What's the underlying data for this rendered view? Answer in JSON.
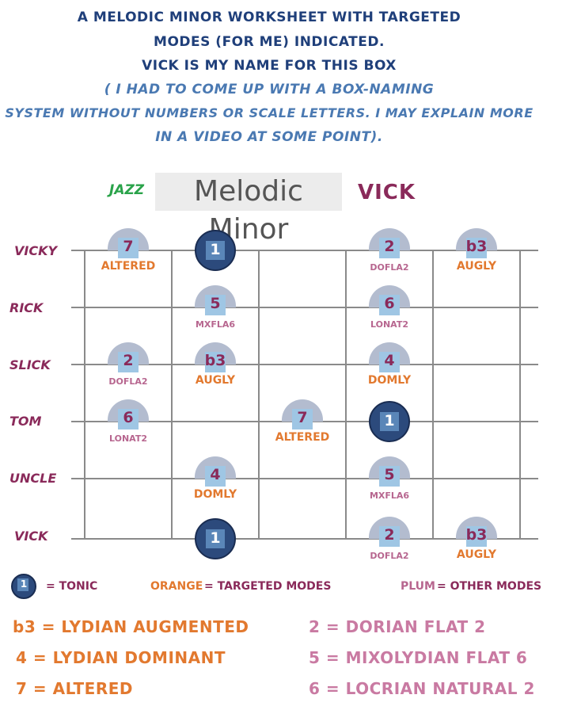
{
  "header": {
    "line1": "A MELODIC MINOR WORKSHEET WITH TARGETED",
    "line2": "MODES (FOR ME) INDICATED.",
    "line3": "VICK IS MY NAME FOR THIS BOX",
    "line4": "( I HAD TO COME UP WITH A BOX-NAMING",
    "line5": "SYSTEM WITHOUT NUMBERS OR SCALE LETTERS. I MAY EXPLAIN MORE",
    "line6": "IN A VIDEO AT SOME POINT)."
  },
  "title": {
    "jazz": "JAZZ",
    "main": "Melodic Minor",
    "box": "VICK"
  },
  "strings": [
    "VICKY",
    "RICK",
    "SLICK",
    "TOM",
    "UNCLE",
    "VICK"
  ],
  "markers": [
    {
      "string": 0,
      "fret": 0,
      "degree": "7",
      "mode": "ALTERED",
      "role": "targeted"
    },
    {
      "string": 0,
      "fret": 1,
      "degree": "1",
      "mode": "",
      "role": "tonic"
    },
    {
      "string": 0,
      "fret": 3,
      "degree": "2",
      "mode": "DOFLA2",
      "role": "other"
    },
    {
      "string": 0,
      "fret": 4,
      "degree": "b3",
      "mode": "AUGLY",
      "role": "targeted"
    },
    {
      "string": 1,
      "fret": 1,
      "degree": "5",
      "mode": "MXFLA6",
      "role": "other"
    },
    {
      "string": 1,
      "fret": 3,
      "degree": "6",
      "mode": "LONAT2",
      "role": "other"
    },
    {
      "string": 2,
      "fret": 0,
      "degree": "2",
      "mode": "DOFLA2",
      "role": "other"
    },
    {
      "string": 2,
      "fret": 1,
      "degree": "b3",
      "mode": "AUGLY",
      "role": "targeted"
    },
    {
      "string": 2,
      "fret": 3,
      "degree": "4",
      "mode": "DOMLY",
      "role": "targeted"
    },
    {
      "string": 3,
      "fret": 0,
      "degree": "6",
      "mode": "LONAT2",
      "role": "other"
    },
    {
      "string": 3,
      "fret": 2,
      "degree": "7",
      "mode": "ALTERED",
      "role": "targeted"
    },
    {
      "string": 3,
      "fret": 3,
      "degree": "1",
      "mode": "",
      "role": "tonic"
    },
    {
      "string": 4,
      "fret": 1,
      "degree": "4",
      "mode": "DOMLY",
      "role": "targeted"
    },
    {
      "string": 4,
      "fret": 3,
      "degree": "5",
      "mode": "MXFLA6",
      "role": "other"
    },
    {
      "string": 5,
      "fret": 1,
      "degree": "1",
      "mode": "",
      "role": "tonic"
    },
    {
      "string": 5,
      "fret": 3,
      "degree": "2",
      "mode": "DOFLA2",
      "role": "other"
    },
    {
      "string": 5,
      "fret": 4,
      "degree": "b3",
      "mode": "AUGLY",
      "role": "targeted"
    }
  ],
  "legend": {
    "tonic_symbol": "1",
    "tonic_text": "= TONIC",
    "orange_word": "ORANGE",
    "orange_rest": "= TARGETED MODES",
    "plum_word": "PLUM",
    "plum_rest": "= OTHER MODES",
    "rows": [
      {
        "text": "b3  =  LYDIAN AUGMENTED",
        "color": "orange"
      },
      {
        "text": "2   =  DORIAN FLAT  2",
        "color": "plum"
      },
      {
        "text": "4  =  LYDIAN DOMINANT",
        "color": "orange"
      },
      {
        "text": "5   =  MIXOLYDIAN FLAT 6",
        "color": "plum"
      },
      {
        "text": "7  =   ALTERED",
        "color": "orange"
      },
      {
        "text": "6  =  LOCRIAN NATURAL 2",
        "color": "plum"
      }
    ]
  },
  "colors": {
    "orange": "#e2792f",
    "plum": "#b7668f",
    "tonic": "#2c4a7c",
    "navy_text": "#1f3f7a",
    "blue_text": "#4a79b2",
    "jazz_green": "#2aa34a"
  }
}
